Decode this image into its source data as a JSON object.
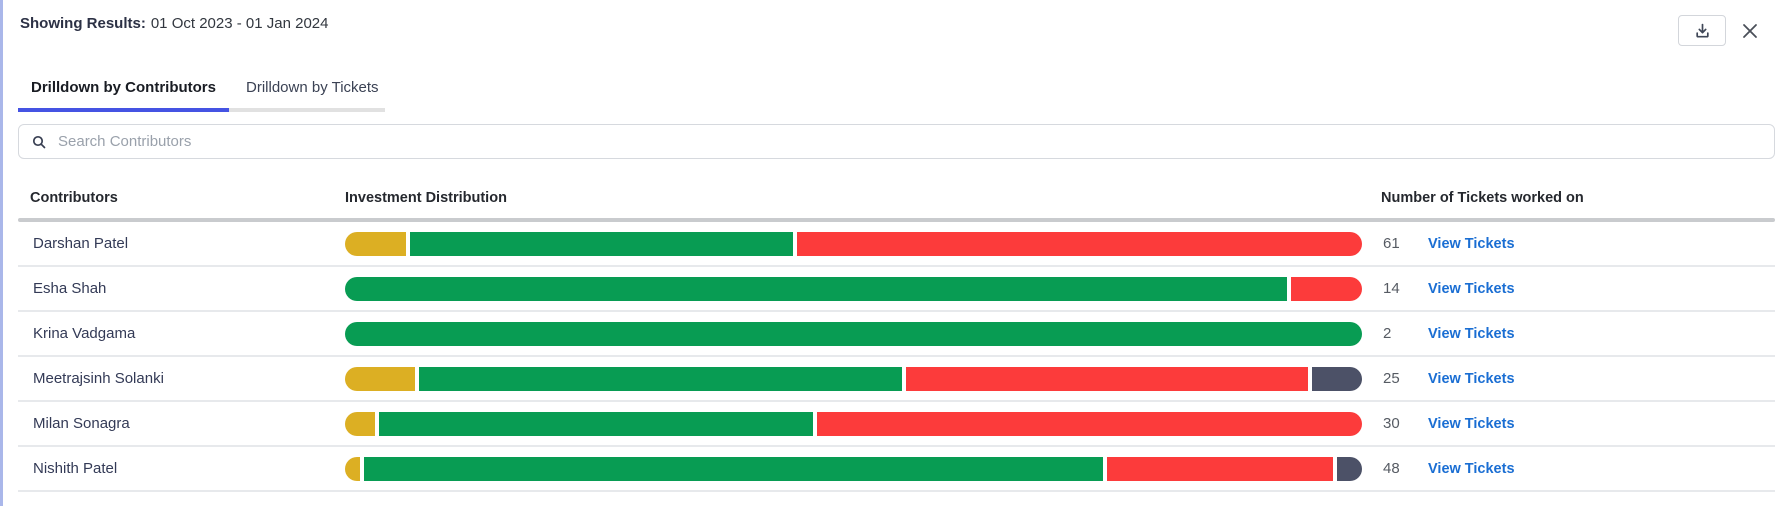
{
  "header": {
    "results_label": "Showing Results:",
    "results_value": "01 Oct 2023 - 01 Jan 2024"
  },
  "tabs": [
    {
      "label": "Drilldown by Contributors",
      "active": true
    },
    {
      "label": "Drilldown by Tickets",
      "active": false
    }
  ],
  "search": {
    "placeholder": "Search Contributors",
    "value": ""
  },
  "colors": {
    "gold": "#DCAF23",
    "green": "#089C53",
    "red": "#FC3B3B",
    "slate": "#4C5167",
    "link_blue": "#1A6ED3",
    "tab_underline": "#4553E3",
    "left_edge": "#AAB7EA"
  },
  "table": {
    "columns": [
      "Contributors",
      "Investment Distribution",
      "Number of Tickets worked on"
    ],
    "link_label": "View Tickets",
    "rows": [
      {
        "name": "Darshan Patel",
        "tickets": "61",
        "segments": [
          {
            "color": "gold",
            "pct": 6
          },
          {
            "color": "green",
            "pct": 38
          },
          {
            "color": "red",
            "pct": 56
          }
        ]
      },
      {
        "name": "Esha Shah",
        "tickets": "14",
        "segments": [
          {
            "color": "green",
            "pct": 93
          },
          {
            "color": "red",
            "pct": 7
          }
        ]
      },
      {
        "name": "Krina Vadgama",
        "tickets": "2",
        "segments": [
          {
            "color": "green",
            "pct": 100
          }
        ]
      },
      {
        "name": "Meetrajsinh Solanki",
        "tickets": "25",
        "segments": [
          {
            "color": "gold",
            "pct": 7
          },
          {
            "color": "green",
            "pct": 48
          },
          {
            "color": "red",
            "pct": 40
          },
          {
            "color": "slate",
            "pct": 5
          }
        ]
      },
      {
        "name": "Milan Sonagra",
        "tickets": "30",
        "segments": [
          {
            "color": "gold",
            "pct": 3
          },
          {
            "color": "green",
            "pct": 43
          },
          {
            "color": "red",
            "pct": 54
          }
        ]
      },
      {
        "name": "Nishith Patel",
        "tickets": "48",
        "segments": [
          {
            "color": "gold",
            "pct": 1.5
          },
          {
            "color": "green",
            "pct": 73.5
          },
          {
            "color": "red",
            "pct": 22.5
          },
          {
            "color": "slate",
            "pct": 2.5
          }
        ]
      }
    ]
  }
}
